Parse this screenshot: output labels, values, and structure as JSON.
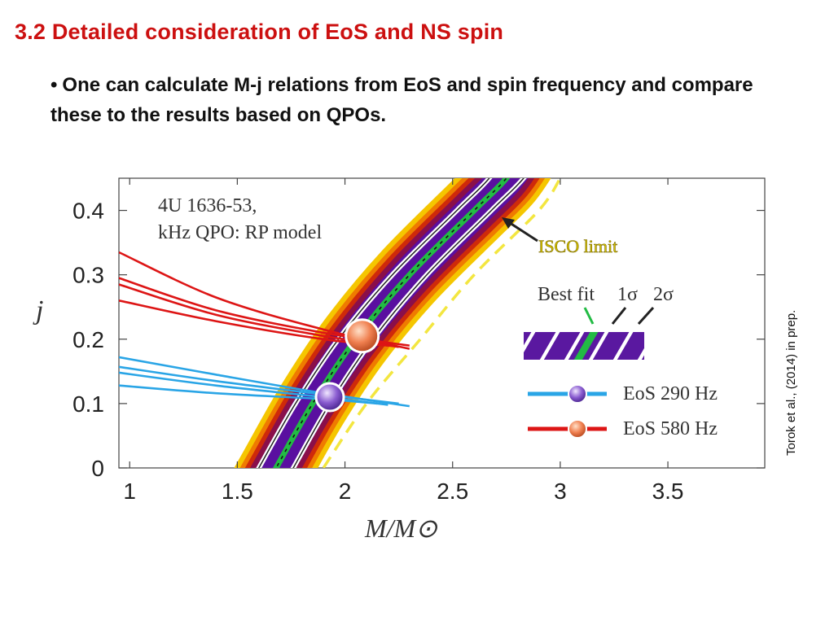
{
  "slide": {
    "title": "3.2 Detailed consideration of EoS and NS spin",
    "bullet_marker": "•",
    "bullet_text": "One can calculate M-j relations from EoS and spin frequency and compare these to the results based on QPOs.",
    "credit": "Torok et al., (2014) in prep."
  },
  "chart_data": {
    "type": "line",
    "title": "4U 1636-53,",
    "subtitle": "kHz QPO: RP model",
    "xlabel": "M/M⊙",
    "ylabel": "j",
    "xlim": [
      0.95,
      3.95
    ],
    "ylim": [
      0,
      0.45
    ],
    "x_ticks": [
      "1",
      "1.5",
      "2",
      "2.5",
      "3",
      "3.5"
    ],
    "y_ticks": [
      "0",
      "0.1",
      "0.2",
      "0.3",
      "0.4"
    ],
    "x_tick_values": [
      1,
      1.5,
      2,
      2.5,
      3,
      3.5
    ],
    "y_tick_values": [
      0,
      0.1,
      0.2,
      0.3,
      0.4
    ],
    "grid": false,
    "qpo_band": {
      "best_fit_center": [
        [
          1.68,
          0
        ],
        [
          1.85,
          0.1
        ],
        [
          2.05,
          0.2
        ],
        [
          2.3,
          0.3
        ],
        [
          2.6,
          0.4
        ],
        [
          2.75,
          0.45
        ]
      ],
      "half_width_2sigma": 0.17,
      "half_width_1sigma": 0.08,
      "colors": [
        "#f5c600",
        "#ef7b00",
        "#cf2a0a",
        "#8a0f4a",
        "#5a0fa0"
      ],
      "best_fit_color": "#22bb44",
      "sigma_line_color": "#ffffff",
      "isco_color": "#f3e640"
    },
    "isco_limit": [
      [
        1.9,
        0
      ],
      [
        2.1,
        0.1
      ],
      [
        2.35,
        0.2
      ],
      [
        2.6,
        0.3
      ],
      [
        2.9,
        0.4
      ],
      [
        3.0,
        0.45
      ]
    ],
    "annotations": {
      "isco_label": "ISCO limit",
      "legend_header_best": "Best fit",
      "legend_header_1s": "1σ",
      "legend_header_2s": "2σ",
      "eos_290": "EoS 290 Hz",
      "eos_580": "EoS 580 Hz"
    },
    "series": [
      {
        "name": "EoS 290 Hz",
        "color": "#2aa5e6",
        "marker_color": "#8a5cd0",
        "marker": [
          1.93,
          0.11
        ],
        "curves": [
          [
            [
              0.95,
              0.172
            ],
            [
              1.4,
              0.145
            ],
            [
              1.9,
              0.116
            ],
            [
              2.3,
              0.096
            ]
          ],
          [
            [
              0.95,
              0.157
            ],
            [
              1.4,
              0.135
            ],
            [
              1.9,
              0.114
            ],
            [
              2.25,
              0.1
            ]
          ],
          [
            [
              0.95,
              0.148
            ],
            [
              1.4,
              0.128
            ],
            [
              1.9,
              0.11
            ],
            [
              2.2,
              0.098
            ]
          ],
          [
            [
              0.95,
              0.128
            ],
            [
              1.4,
              0.116
            ],
            [
              1.9,
              0.107
            ],
            [
              2.15,
              0.1
            ]
          ]
        ]
      },
      {
        "name": "EoS 580 Hz",
        "color": "#dd1515",
        "marker_color": "#f08050",
        "marker": [
          2.08,
          0.205
        ],
        "curves": [
          [
            [
              0.95,
              0.335
            ],
            [
              1.4,
              0.265
            ],
            [
              1.9,
              0.215
            ],
            [
              2.3,
              0.185
            ]
          ],
          [
            [
              0.95,
              0.295
            ],
            [
              1.4,
              0.245
            ],
            [
              1.9,
              0.21
            ],
            [
              2.3,
              0.19
            ]
          ],
          [
            [
              0.95,
              0.285
            ],
            [
              1.4,
              0.238
            ],
            [
              1.9,
              0.205
            ],
            [
              2.25,
              0.188
            ]
          ],
          [
            [
              0.95,
              0.26
            ],
            [
              1.4,
              0.228
            ],
            [
              1.9,
              0.2
            ],
            [
              2.2,
              0.19
            ]
          ]
        ]
      }
    ]
  }
}
